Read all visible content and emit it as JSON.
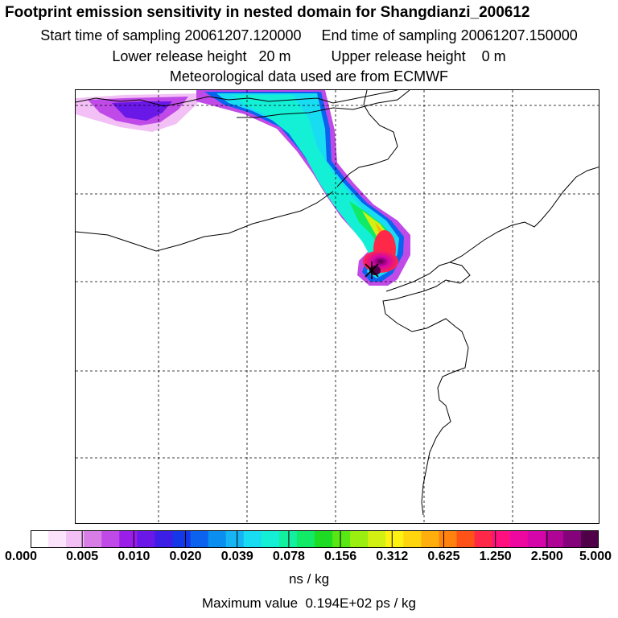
{
  "header": {
    "title": "Footprint emission sensitivity in nested domain for Shangdianzi_200612",
    "sampling_line": "Start time of sampling 20061207.120000     End time of sampling 20061207.150000",
    "release_line": "Lower release height   20 m          Upper release height    0 m",
    "met_line": "Meteorological data used are from ECMWF"
  },
  "colorbar": {
    "colors": [
      "#ffffff",
      "#fbe3fb",
      "#f3c0f6",
      "#d87de6",
      "#c04ae8",
      "#9a1ee8",
      "#6a18e8",
      "#3c1ee6",
      "#1438e8",
      "#0a62ee",
      "#0a8ef0",
      "#16b4f2",
      "#18dcf2",
      "#14f0d6",
      "#12f0a0",
      "#10ea66",
      "#1edc24",
      "#58e614",
      "#9aee10",
      "#d2f012",
      "#fff212",
      "#ffd60e",
      "#ffae0e",
      "#ff820e",
      "#ff5218",
      "#ff2848",
      "#ff107e",
      "#ee08a0",
      "#d406aa",
      "#b00496",
      "#84027a",
      "#500048"
    ],
    "tick_labels": [
      "0.000",
      "0.005",
      "0.010",
      "0.020",
      "0.039",
      "0.078",
      "0.156",
      "0.312",
      "0.625",
      "1.250",
      "2.500",
      "5.000"
    ],
    "units": "ns / kg"
  },
  "footer": {
    "max_value": "Maximum value  0.194E+02 ps / kg"
  }
}
